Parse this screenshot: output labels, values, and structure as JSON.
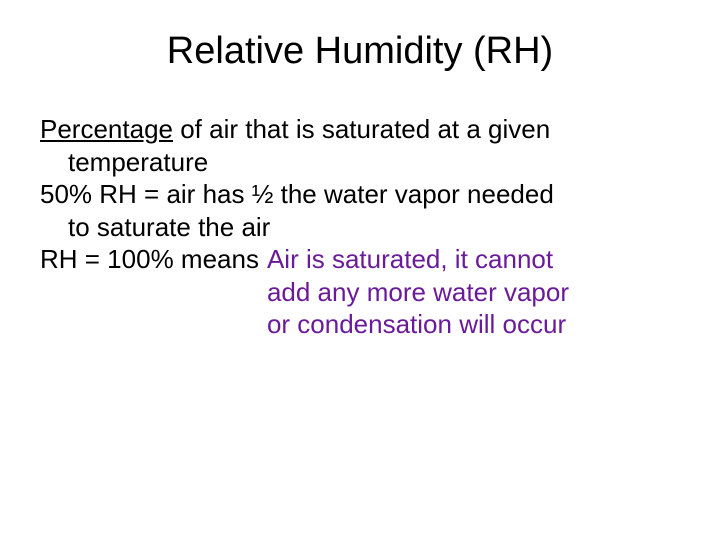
{
  "title": "Relative Humidity (RH)",
  "colors": {
    "purple": "#6a1b9a",
    "black": "#000000",
    "background": "#ffffff"
  },
  "body": {
    "line1_underlined": "Percentage",
    "line1_rest": " of air that is saturated at a given",
    "line2": "temperature",
    "line3": "50% RH = air has ½ the water vapor needed",
    "line4": "to saturate the air",
    "line5_left": "RH = 100% means",
    "line5_purple1": "Air is saturated, it cannot",
    "line5_purple2": "add any more water vapor",
    "line5_purple3": "or condensation will occur"
  }
}
